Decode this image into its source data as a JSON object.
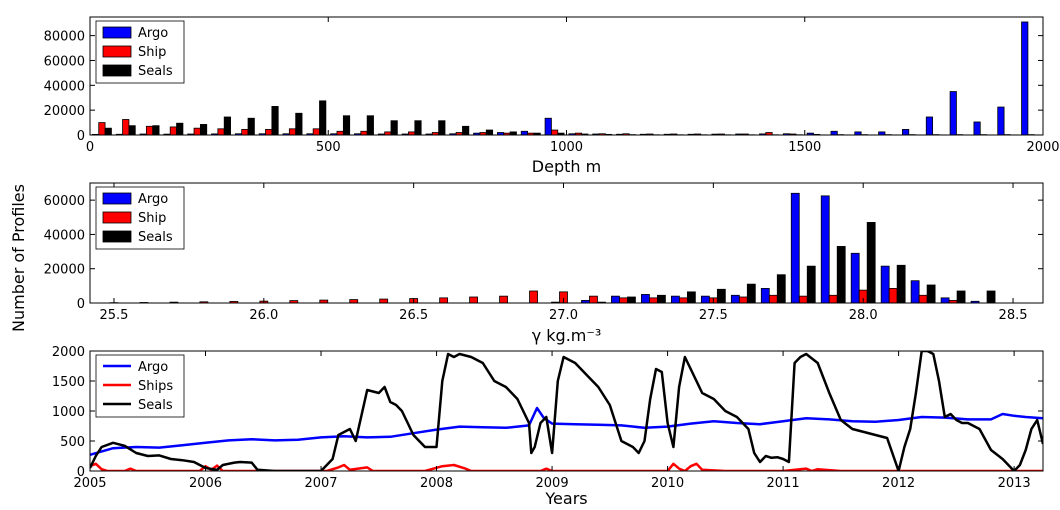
{
  "figure": {
    "ylabel": "Number of Profiles"
  },
  "colors": {
    "argo": "#0000ff",
    "ship": "#ff0000",
    "seals": "#000000"
  },
  "chart_data": [
    {
      "type": "bar",
      "xlabel": "Depth m",
      "xlim": [
        0,
        2000
      ],
      "ylim": [
        0,
        95000
      ],
      "xticks": [
        0,
        500,
        1000,
        1500,
        2000
      ],
      "yticks": [
        0,
        20000,
        40000,
        60000,
        80000
      ],
      "bin_width": 50,
      "legend": {
        "position": "top-left",
        "entries": [
          "Argo",
          "Ship",
          "Seals"
        ]
      },
      "categories": [
        25,
        75,
        125,
        175,
        225,
        275,
        325,
        375,
        425,
        475,
        525,
        575,
        625,
        675,
        725,
        775,
        825,
        875,
        925,
        975,
        1025,
        1075,
        1125,
        1175,
        1225,
        1275,
        1325,
        1375,
        1425,
        1475,
        1525,
        1575,
        1625,
        1675,
        1725,
        1775,
        1825,
        1875,
        1925,
        1975
      ],
      "series": [
        {
          "name": "Argo",
          "values": [
            500,
            600,
            800,
            700,
            800,
            900,
            1000,
            1000,
            1000,
            1000,
            1000,
            1000,
            800,
            800,
            800,
            1000,
            1500,
            2000,
            3000,
            13500,
            1000,
            800,
            600,
            600,
            600,
            600,
            700,
            800,
            900,
            1000,
            1500,
            3000,
            2500,
            2500,
            4500,
            14500,
            35000,
            10500,
            22500,
            91000
          ]
        },
        {
          "name": "Ship",
          "values": [
            10000,
            12500,
            7000,
            6500,
            5500,
            5000,
            4500,
            4500,
            5000,
            5000,
            3000,
            3000,
            2500,
            2500,
            2000,
            2000,
            2000,
            1500,
            1500,
            4000,
            1500,
            1000,
            1000,
            800,
            800,
            800,
            800,
            800,
            2000,
            800,
            500,
            300,
            300,
            300,
            300,
            300,
            300,
            300,
            300,
            300
          ]
        },
        {
          "name": "Seals",
          "values": [
            5500,
            7500,
            7500,
            9500,
            8500,
            14500,
            13500,
            23000,
            17500,
            27500,
            15500,
            15500,
            11500,
            11500,
            11500,
            7000,
            4000,
            2500,
            1500,
            1500,
            800,
            500,
            300,
            200,
            200,
            200,
            200,
            200,
            200,
            200,
            100,
            100,
            100,
            100,
            100,
            100,
            100,
            100,
            100,
            100
          ]
        }
      ]
    },
    {
      "type": "bar",
      "xlabel": "γ kg.m⁻³",
      "xlim": [
        25.42,
        28.6
      ],
      "ylim": [
        0,
        70000
      ],
      "xticks": [
        25.5,
        26.0,
        26.5,
        27.0,
        27.5,
        28.0,
        28.5
      ],
      "xtick_labels": [
        "25.5",
        "26.0",
        "26.5",
        "27.0",
        "27.5",
        "28.0",
        "28.5"
      ],
      "yticks": [
        0,
        20000,
        40000,
        60000
      ],
      "bin_width": 0.1,
      "legend": {
        "position": "top-left",
        "entries": [
          "Argo",
          "Ship",
          "Seals"
        ]
      },
      "categories": [
        25.5,
        25.6,
        25.7,
        25.8,
        25.9,
        26.0,
        26.1,
        26.2,
        26.3,
        26.4,
        26.5,
        26.6,
        26.7,
        26.8,
        26.9,
        27.0,
        27.1,
        27.2,
        27.3,
        27.4,
        27.5,
        27.6,
        27.7,
        27.8,
        27.9,
        28.0,
        28.1,
        28.2,
        28.3,
        28.4
      ],
      "series": [
        {
          "name": "Argo",
          "values": [
            0,
            0,
            0,
            0,
            0,
            0,
            0,
            0,
            0,
            0,
            0,
            0,
            0,
            0,
            0,
            500,
            1500,
            4000,
            5000,
            4000,
            4000,
            4500,
            8500,
            64000,
            62500,
            29000,
            21500,
            13000,
            3000,
            1000
          ]
        },
        {
          "name": "Ship",
          "values": [
            200,
            300,
            500,
            700,
            900,
            1100,
            1400,
            1700,
            2000,
            2300,
            2600,
            3000,
            3500,
            4000,
            7000,
            6500,
            4000,
            3000,
            3000,
            3000,
            3000,
            3500,
            4500,
            4000,
            4500,
            7500,
            8500,
            4500,
            1500,
            0
          ]
        },
        {
          "name": "Seals",
          "values": [
            0,
            0,
            0,
            0,
            0,
            0,
            0,
            0,
            0,
            0,
            0,
            0,
            0,
            0,
            0,
            0,
            500,
            3500,
            4500,
            6500,
            8000,
            11000,
            16500,
            21500,
            33000,
            47000,
            22000,
            10500,
            7000,
            7000
          ]
        }
      ]
    },
    {
      "type": "line",
      "xlabel": "Years",
      "xlim": [
        2005,
        2013.25
      ],
      "ylim": [
        0,
        2000
      ],
      "xticks": [
        2005,
        2006,
        2007,
        2008,
        2009,
        2010,
        2011,
        2012,
        2013
      ],
      "yticks": [
        0,
        500,
        1000,
        1500,
        2000
      ],
      "legend": {
        "position": "top-left",
        "entries": [
          "Argo",
          "Ships",
          "Seals"
        ]
      },
      "series": [
        {
          "name": "Argo",
          "x": [
            2005,
            2005.2,
            2005.4,
            2005.6,
            2005.8,
            2006,
            2006.2,
            2006.4,
            2006.6,
            2006.8,
            2007,
            2007.2,
            2007.4,
            2007.6,
            2007.8,
            2008,
            2008.2,
            2008.4,
            2008.6,
            2008.8,
            2008.87,
            2008.93,
            2009,
            2009.2,
            2009.4,
            2009.6,
            2009.8,
            2010,
            2010.2,
            2010.4,
            2010.6,
            2010.8,
            2011,
            2011.2,
            2011.4,
            2011.6,
            2011.8,
            2012,
            2012.2,
            2012.4,
            2012.6,
            2012.8,
            2012.9,
            2013,
            2013.1,
            2013.25
          ],
          "y": [
            270,
            380,
            400,
            390,
            430,
            470,
            510,
            530,
            510,
            520,
            560,
            580,
            560,
            570,
            630,
            690,
            740,
            730,
            720,
            760,
            1050,
            880,
            790,
            780,
            770,
            760,
            720,
            740,
            790,
            830,
            800,
            780,
            830,
            880,
            860,
            830,
            820,
            850,
            900,
            890,
            860,
            860,
            950,
            920,
            900,
            880
          ]
        },
        {
          "name": "Ships",
          "x": [
            2005,
            2005.05,
            2005.1,
            2005.15,
            2005.3,
            2005.35,
            2005.4,
            2005.6,
            2005.8,
            2005.95,
            2006,
            2006.05,
            2006.1,
            2006.15,
            2006.2,
            2006.4,
            2006.6,
            2006.8,
            2006.95,
            2007.05,
            2007.15,
            2007.2,
            2007.25,
            2007.4,
            2007.45,
            2007.5,
            2007.8,
            2007.9,
            2008.05,
            2008.15,
            2008.25,
            2008.3,
            2008.5,
            2008.9,
            2008.95,
            2009.0,
            2009.3,
            2009.5,
            2009.8,
            2009.9,
            2010,
            2010.05,
            2010.1,
            2010.15,
            2010.2,
            2010.25,
            2010.3,
            2010.5,
            2010.8,
            2011,
            2011.2,
            2011.25,
            2011.3,
            2011.5,
            2012,
            2012.5,
            2013,
            2013.25
          ],
          "y": [
            80,
            120,
            30,
            0,
            0,
            40,
            0,
            0,
            0,
            0,
            80,
            20,
            90,
            0,
            0,
            0,
            0,
            0,
            0,
            0,
            60,
            100,
            20,
            60,
            0,
            0,
            0,
            0,
            80,
            100,
            40,
            0,
            0,
            0,
            40,
            0,
            0,
            0,
            0,
            0,
            0,
            120,
            40,
            0,
            80,
            120,
            20,
            0,
            0,
            0,
            40,
            0,
            30,
            0,
            0,
            0,
            0,
            0
          ]
        },
        {
          "name": "Seals",
          "x": [
            2005,
            2005.05,
            2005.1,
            2005.2,
            2005.3,
            2005.4,
            2005.5,
            2005.6,
            2005.7,
            2005.8,
            2005.9,
            2006,
            2006.1,
            2006.15,
            2006.25,
            2006.3,
            2006.4,
            2006.45,
            2006.6,
            2006.8,
            2007.0,
            2007.05,
            2007.1,
            2007.15,
            2007.2,
            2007.25,
            2007.3,
            2007.4,
            2007.5,
            2007.55,
            2007.6,
            2007.65,
            2007.7,
            2007.75,
            2007.8,
            2007.9,
            2008.0,
            2008.05,
            2008.1,
            2008.15,
            2008.2,
            2008.3,
            2008.4,
            2008.5,
            2008.6,
            2008.7,
            2008.8,
            2008.82,
            2008.85,
            2008.9,
            2008.95,
            2009.0,
            2009.05,
            2009.1,
            2009.2,
            2009.3,
            2009.4,
            2009.5,
            2009.6,
            2009.7,
            2009.75,
            2009.8,
            2009.85,
            2009.9,
            2009.95,
            2010.0,
            2010.05,
            2010.1,
            2010.15,
            2010.2,
            2010.3,
            2010.4,
            2010.5,
            2010.6,
            2010.7,
            2010.75,
            2010.8,
            2010.85,
            2010.9,
            2010.95,
            2011.0,
            2011.05,
            2011.1,
            2011.15,
            2011.2,
            2011.3,
            2011.4,
            2011.5,
            2011.6,
            2011.7,
            2011.8,
            2011.9,
            2012.0,
            2012.05,
            2012.1,
            2012.15,
            2012.2,
            2012.25,
            2012.3,
            2012.35,
            2012.4,
            2012.45,
            2012.5,
            2012.55,
            2012.6,
            2012.7,
            2012.8,
            2012.9,
            2013.0,
            2013.05,
            2013.1,
            2013.15,
            2013.2,
            2013.25
          ],
          "y": [
            50,
            250,
            400,
            470,
            420,
            300,
            250,
            260,
            200,
            180,
            150,
            50,
            20,
            100,
            140,
            150,
            140,
            20,
            0,
            0,
            0,
            100,
            200,
            600,
            650,
            700,
            500,
            1350,
            1300,
            1400,
            1150,
            1100,
            1000,
            800,
            600,
            400,
            400,
            1500,
            1950,
            1900,
            1950,
            1900,
            1800,
            1500,
            1400,
            1200,
            800,
            300,
            400,
            800,
            900,
            300,
            1500,
            1900,
            1800,
            1600,
            1400,
            1100,
            500,
            400,
            300,
            500,
            1200,
            1700,
            1650,
            800,
            400,
            1400,
            1900,
            1700,
            1300,
            1200,
            1000,
            900,
            700,
            300,
            150,
            250,
            220,
            230,
            200,
            150,
            1800,
            1900,
            1950,
            1800,
            1300,
            850,
            700,
            650,
            600,
            550,
            0,
            400,
            700,
            1300,
            2000,
            2000,
            1950,
            1500,
            900,
            950,
            850,
            800,
            800,
            700,
            350,
            200,
            0,
            100,
            350,
            700,
            850,
            450
          ]
        }
      ]
    }
  ]
}
